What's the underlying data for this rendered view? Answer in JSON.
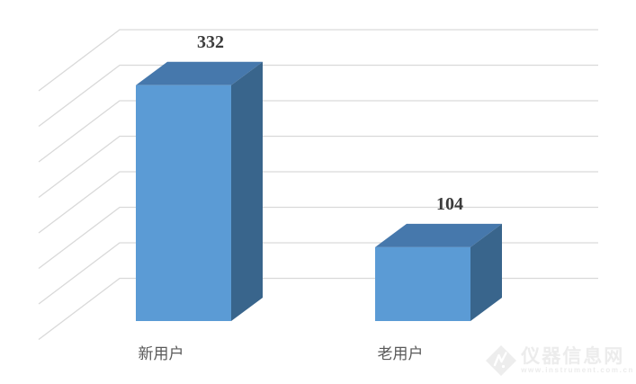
{
  "chart_data": {
    "type": "bar",
    "variant": "3d-column",
    "title": "",
    "xlabel": "",
    "ylabel": "",
    "categories": [
      "新用户",
      "老用户"
    ],
    "values": [
      332,
      104
    ],
    "data_labels_shown": true,
    "ylim": [
      0,
      400
    ],
    "gridline_interval": 50,
    "grid": true,
    "legend": "none",
    "axis_tick_labels_shown": false,
    "colors": {
      "bar_front": "#5b9bd5",
      "bar_top": "#4678ac",
      "bar_side": "#39658c",
      "gridline": "#d9d9d9",
      "value_label": "#3b3b3b",
      "category_label": "#595959"
    }
  },
  "watermark": {
    "site_name": "仪器信息网",
    "site_url": "www.instrument.com.cn",
    "logo": "diamond-logo",
    "color": "#ececec"
  }
}
